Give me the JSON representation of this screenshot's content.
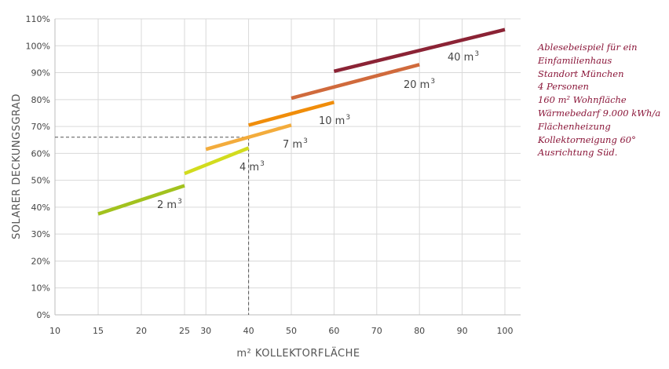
{
  "chart_data": {
    "type": "line",
    "xlabel": "m² KOLLEKTORFLÄCHE",
    "ylabel": "SOLARER DECKUNGSGRAD",
    "xlim": [
      10,
      100
    ],
    "ylim": [
      0,
      110
    ],
    "x_ticks": [
      "10",
      "15",
      "20",
      "25",
      "30",
      "40",
      "50",
      "60",
      "70",
      "80",
      "90",
      "100"
    ],
    "y_ticks": [
      "0%",
      "10%",
      "20%",
      "30%",
      "40%",
      "50%",
      "60%",
      "70%",
      "80%",
      "90%",
      "100%",
      "110%"
    ],
    "grid": true,
    "series": [
      {
        "name": "2 m³",
        "base": "2 m",
        "sup": "3",
        "color": "#a2c21e",
        "x": [
          15,
          25
        ],
        "y": [
          37.5,
          48
        ]
      },
      {
        "name": "4 m³",
        "base": "4 m",
        "sup": "3",
        "color": "#d2dc1e",
        "x": [
          25,
          40
        ],
        "y": [
          52.5,
          62
        ]
      },
      {
        "name": "7 m³",
        "base": "7 m",
        "sup": "3",
        "color": "#f3ac3c",
        "x": [
          30,
          50
        ],
        "y": [
          61.5,
          70.5
        ]
      },
      {
        "name": "10 m³",
        "base": "10 m",
        "sup": "3",
        "color": "#f08d0a",
        "x": [
          40,
          60
        ],
        "y": [
          70.5,
          79
        ]
      },
      {
        "name": "20 m³",
        "base": "20 m",
        "sup": "3",
        "color": "#d06a3c",
        "x": [
          50,
          80
        ],
        "y": [
          80.5,
          93
        ]
      },
      {
        "name": "40 m³",
        "base": "40 m",
        "sup": "3",
        "color": "#8b2335",
        "x": [
          60,
          100
        ],
        "y": [
          90.5,
          106
        ]
      }
    ],
    "reference": {
      "x": 40,
      "y": 66
    },
    "note_color": "#8a1538"
  },
  "note_lines": [
    "Ablesebeispiel für ein",
    "Einfamilienhaus",
    "Standort München",
    "4 Personen",
    "160 m² Wohnfläche",
    "Wärmebedarf 9.000 kWh/a",
    "Flächenheizung",
    "Kollektorneigung 60°",
    "Ausrichtung Süd."
  ]
}
